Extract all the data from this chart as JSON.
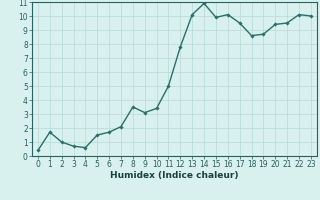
{
  "x": [
    0,
    1,
    2,
    3,
    4,
    5,
    6,
    7,
    8,
    9,
    10,
    11,
    12,
    13,
    14,
    15,
    16,
    17,
    18,
    19,
    20,
    21,
    22,
    23
  ],
  "y": [
    0.4,
    1.7,
    1.0,
    0.7,
    0.6,
    1.5,
    1.7,
    2.1,
    3.5,
    3.1,
    3.4,
    5.0,
    7.8,
    10.1,
    10.9,
    9.9,
    10.1,
    9.5,
    8.6,
    8.7,
    9.4,
    9.5,
    10.1,
    10.0
  ],
  "xlabel": "Humidex (Indice chaleur)",
  "xlim": [
    -0.5,
    23.5
  ],
  "ylim": [
    0,
    11
  ],
  "xticks": [
    0,
    1,
    2,
    3,
    4,
    5,
    6,
    7,
    8,
    9,
    10,
    11,
    12,
    13,
    14,
    15,
    16,
    17,
    18,
    19,
    20,
    21,
    22,
    23
  ],
  "yticks": [
    0,
    1,
    2,
    3,
    4,
    5,
    6,
    7,
    8,
    9,
    10,
    11
  ],
  "line_color": "#2a7068",
  "marker": "D",
  "marker_size": 1.8,
  "line_width": 1.0,
  "bg_color": "#d8f0ee",
  "grid_color": "#b8d8d5",
  "tick_color": "#2a6060",
  "label_color": "#1a4040",
  "xlabel_fontsize": 6.5,
  "tick_fontsize": 5.5,
  "fig_width": 3.2,
  "fig_height": 2.0,
  "dpi": 100
}
